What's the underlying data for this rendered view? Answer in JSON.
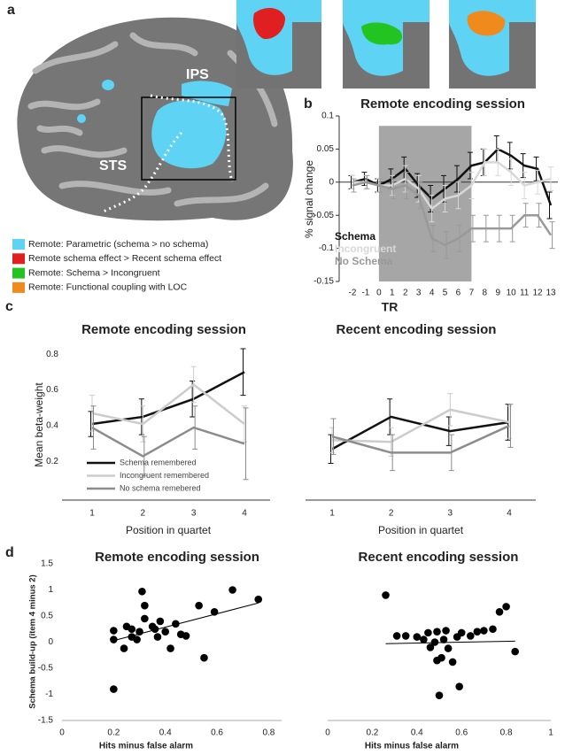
{
  "panel_labels": [
    "a",
    "b",
    "c",
    "d"
  ],
  "brain_labels": [
    "IPS",
    "STS"
  ],
  "legend": [
    {
      "label": "Remote: Parametric (schema > no schema)",
      "color": "#5fd3f3"
    },
    {
      "label": "Remote schema effect > Recent schema effect",
      "color": "#e02020"
    },
    {
      "label": "Remote: Schema > Incongruent",
      "color": "#22c422"
    },
    {
      "label": "Remote: Functional coupling with LOC",
      "color": "#f08a1c"
    }
  ],
  "chart_data": [
    {
      "type": "line",
      "title": "Remote encoding session",
      "ylabel": "% signal change",
      "xlabel": "TR",
      "categories": [
        "-2",
        "-1",
        "0",
        "1",
        "2",
        "3",
        "4",
        "5",
        "6",
        "7",
        "8",
        "9",
        "10",
        "11",
        "12",
        "13"
      ],
      "ylim": [
        -0.15,
        0.1
      ],
      "yticks": [
        0.1,
        0.05,
        0,
        -0.05,
        -0.1,
        -0.15
      ],
      "highlight": {
        "x": [
          0,
          7
        ],
        "y": [
          -0.15,
          0.085
        ]
      },
      "legend_position": "lower left",
      "series": [
        {
          "name": "Schema",
          "color": "#111111",
          "values": [
            0,
            0.005,
            -0.005,
            0.005,
            0.02,
            -0.005,
            -0.025,
            -0.01,
            0.005,
            0.025,
            0.03,
            0.05,
            0.04,
            0.025,
            0.02,
            -0.035
          ],
          "errors": [
            0.01,
            0.01,
            0.01,
            0.015,
            0.018,
            0.018,
            0.02,
            0.02,
            0.02,
            0.02,
            0.02,
            0.02,
            0.02,
            0.018,
            0.018,
            0.02
          ]
        },
        {
          "name": "Incongruent",
          "color": "#d8d8d8",
          "values": [
            0,
            0,
            -0.005,
            -0.005,
            0.005,
            -0.01,
            -0.04,
            -0.025,
            -0.02,
            -0.005,
            0.03,
            0.03,
            0.015,
            -0.005,
            0,
            0.005
          ],
          "errors": [
            0.01,
            0.01,
            0.01,
            0.015,
            0.02,
            0.02,
            0.02,
            0.02,
            0.02,
            0.02,
            0.02,
            0.02,
            0.02,
            0.02,
            0.018,
            0.018
          ]
        },
        {
          "name": "No Schema",
          "color": "#999999",
          "values": [
            -0.005,
            0,
            -0.005,
            -0.01,
            -0.005,
            -0.02,
            -0.085,
            -0.095,
            -0.085,
            -0.07,
            -0.07,
            -0.07,
            -0.07,
            -0.05,
            -0.05,
            -0.08
          ],
          "errors": [
            0.01,
            0.01,
            0.01,
            0.015,
            0.02,
            0.02,
            0.02,
            0.02,
            0.02,
            0.02,
            0.02,
            0.02,
            0.02,
            0.018,
            0.018,
            0.02
          ]
        }
      ]
    },
    {
      "type": "line",
      "title": "Remote encoding session",
      "ylabel": "Mean beta-weight",
      "xlabel": "Position in quartet",
      "categories": [
        "1",
        "2",
        "3",
        "4"
      ],
      "ylim": [
        0,
        0.85
      ],
      "yticks": [
        0.2,
        0.4,
        0.6,
        0.8
      ],
      "legend_position": "lower left",
      "series": [
        {
          "name": "Schema remembered",
          "color": "#111111",
          "values": [
            0.41,
            0.45,
            0.55,
            0.7
          ],
          "errors": [
            0.07,
            0.1,
            0.1,
            0.13
          ]
        },
        {
          "name": "Incongruent remembered",
          "color": "#cccccc",
          "values": [
            0.47,
            0.41,
            0.63,
            0.41
          ],
          "errors": [
            0.1,
            0.1,
            0.1,
            0.1
          ]
        },
        {
          "name": "No schema remebered",
          "color": "#8c8c8c",
          "values": [
            0.39,
            0.23,
            0.39,
            0.3
          ],
          "errors": [
            0.12,
            0.11,
            0.12,
            0.2
          ]
        }
      ]
    },
    {
      "type": "line",
      "title": "Recent encoding session",
      "xlabel": "Position in quartet",
      "categories": [
        "1",
        "2",
        "3",
        "4"
      ],
      "ylim": [
        0,
        0.85
      ],
      "series": [
        {
          "color": "#111111",
          "values": [
            0.27,
            0.45,
            0.37,
            0.42
          ],
          "errors": [
            0.08,
            0.1,
            0.08,
            0.1
          ]
        },
        {
          "color": "#cccccc",
          "values": [
            0.32,
            0.31,
            0.49,
            0.42
          ],
          "errors": [
            0.07,
            0.08,
            0.09,
            0.09
          ]
        },
        {
          "color": "#8c8c8c",
          "values": [
            0.34,
            0.25,
            0.25,
            0.4
          ],
          "errors": [
            0.1,
            0.1,
            0.1,
            0.12
          ]
        }
      ]
    },
    {
      "type": "scatter",
      "title": "Remote encoding session",
      "ylabel": "Schema build-up (item 4 minus 2)",
      "xlabel": "Hits minus false alarm",
      "xlim": [
        0,
        0.85
      ],
      "xticks": [
        0,
        0.2,
        0.4,
        0.6,
        0.8
      ],
      "ylim": [
        -1.5,
        1.5
      ],
      "yticks": [
        1.5,
        1,
        0.5,
        0,
        -0.5,
        -1,
        -1.5
      ],
      "color": "#000000",
      "x": [
        0.2,
        0.2,
        0.2,
        0.24,
        0.25,
        0.27,
        0.27,
        0.29,
        0.3,
        0.31,
        0.32,
        0.32,
        0.35,
        0.36,
        0.37,
        0.38,
        0.4,
        0.42,
        0.44,
        0.46,
        0.48,
        0.53,
        0.55,
        0.59,
        0.66,
        0.76
      ],
      "y": [
        -0.9,
        0.22,
        0.05,
        -0.12,
        0.3,
        0.25,
        0.1,
        0.05,
        0.2,
        0.97,
        0.7,
        0.45,
        0.3,
        0.25,
        0.1,
        0.4,
        0.2,
        -0.12,
        0.35,
        0.15,
        0.12,
        0.7,
        -0.3,
        0.58,
        1,
        0.82
      ],
      "trendline": {
        "x": [
          0.2,
          0.76
        ],
        "y": [
          0.03,
          0.75
        ]
      }
    },
    {
      "type": "scatter",
      "title": "Recent encoding session",
      "xlabel": "Hits minus false alarm",
      "xlim": [
        0,
        1
      ],
      "xticks": [
        0,
        0.2,
        0.4,
        0.6,
        0.8,
        1
      ],
      "ylim": [
        -1.5,
        1.5
      ],
      "color": "#000000",
      "x": [
        0.26,
        0.31,
        0.35,
        0.4,
        0.43,
        0.45,
        0.46,
        0.48,
        0.49,
        0.49,
        0.5,
        0.51,
        0.52,
        0.53,
        0.54,
        0.56,
        0.58,
        0.59,
        0.6,
        0.64,
        0.67,
        0.7,
        0.74,
        0.77,
        0.8,
        0.84
      ],
      "y": [
        0.9,
        0.12,
        0.12,
        0.1,
        0.05,
        0.18,
        -0.1,
        0,
        -0.35,
        0.2,
        -1.02,
        -0.3,
        0.05,
        0.22,
        -0.12,
        -0.38,
        0.1,
        -0.85,
        0.18,
        0.12,
        0.2,
        0.22,
        0.25,
        0.58,
        0.68,
        -0.18
      ],
      "trendline": {
        "x": [
          0.26,
          0.84
        ],
        "y": [
          -0.03,
          0.02
        ]
      }
    }
  ]
}
